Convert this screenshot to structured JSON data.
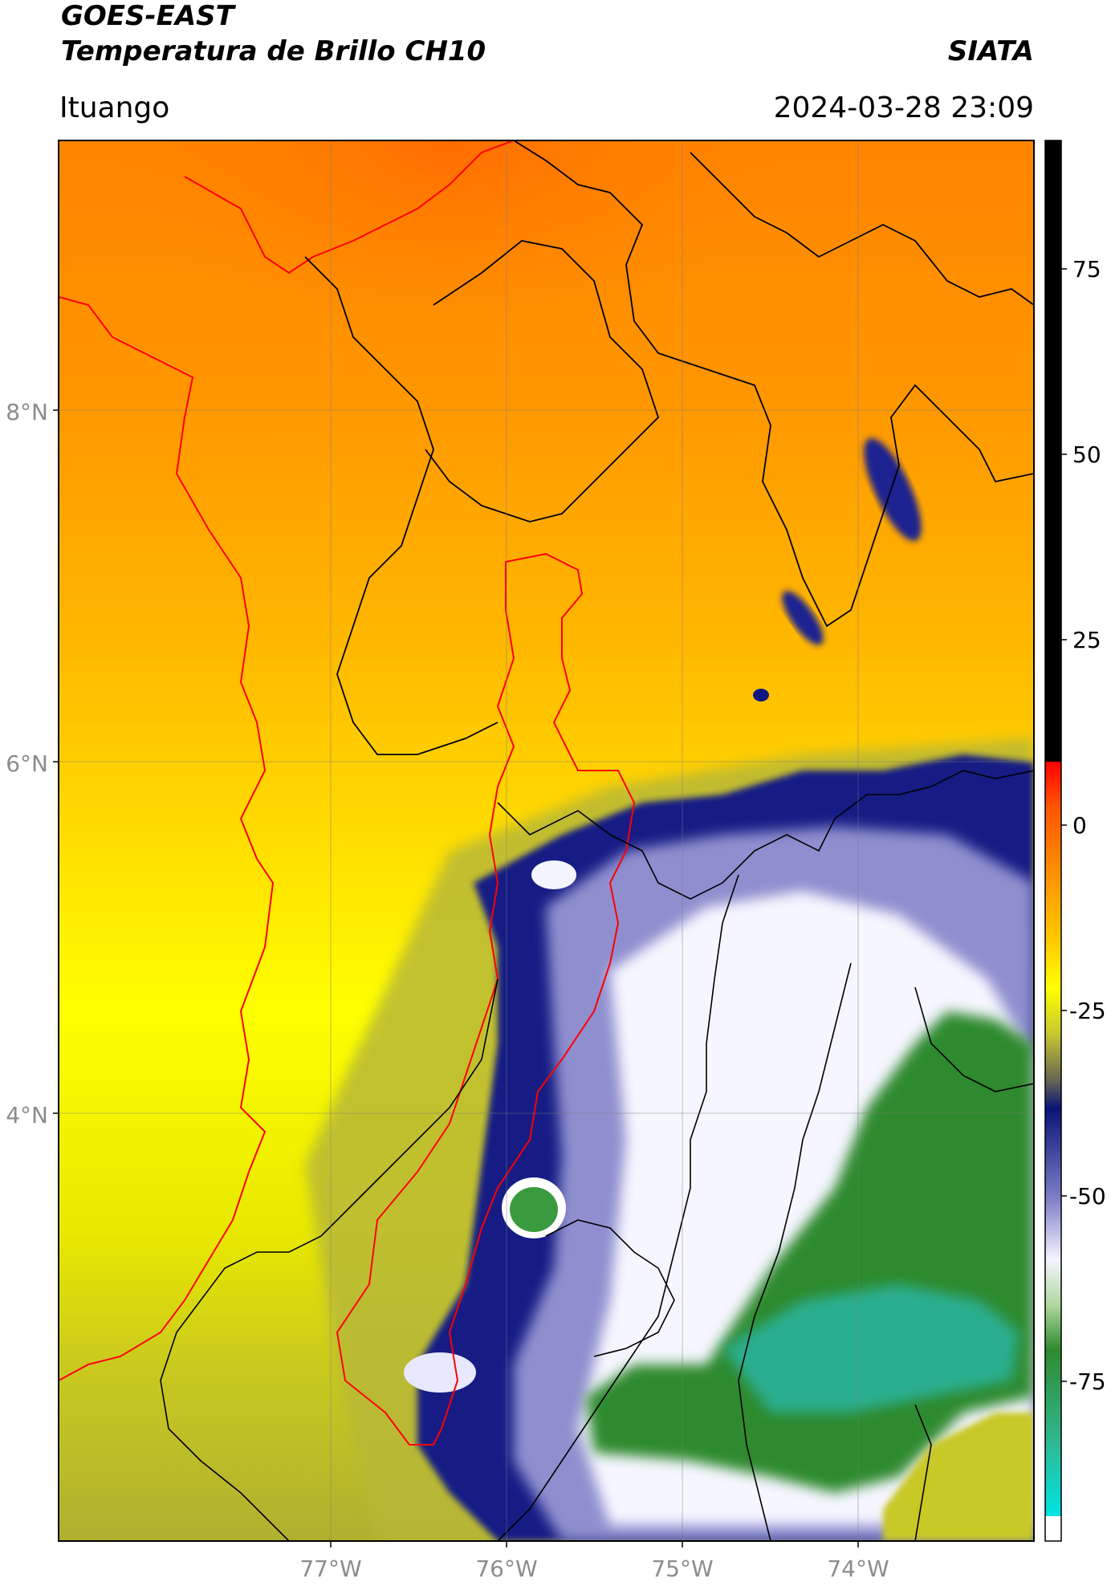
{
  "header": {
    "satellite": "GOES-EAST",
    "product": "Temperatura de Brillo CH10",
    "agency": "SIATA",
    "region": "Ituango",
    "datetime": "2024-03-28 23:09"
  },
  "map": {
    "lat_ticks": [
      "8°N",
      "6°N",
      "4°N"
    ],
    "lon_ticks": [
      "77°W",
      "76°W",
      "75°W",
      "74°W"
    ],
    "grid": true,
    "lat_range": [
      1.6,
      9.55
    ],
    "lon_range": [
      -78.55,
      -73.0
    ]
  },
  "colorbar": {
    "orientation": "vertical",
    "placement": "right",
    "ticks": [
      "75",
      "50",
      "25",
      "0",
      "-25",
      "-50",
      "-75"
    ],
    "range": [
      -93,
      93
    ],
    "colors": {
      "warm_black": "#000000",
      "red": "#ff0000",
      "orange": "#ff8c00",
      "yellow": "#ffff00",
      "olive": "#9a9a38",
      "navy": "#101880",
      "lavender": "#a8a8d8",
      "white": "#ffffff",
      "green": "#2f8a2f",
      "turquoise": "#20d0b0",
      "cyan": "#00e0e0"
    }
  }
}
